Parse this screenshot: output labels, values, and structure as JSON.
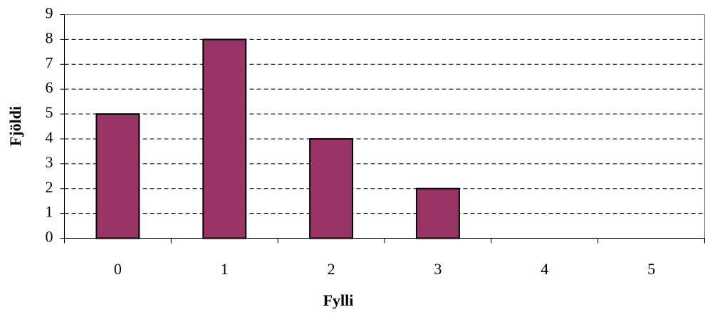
{
  "chart_data": {
    "type": "bar",
    "x_label": "Fylli",
    "y_label": "Fjöldi",
    "categories": [
      "0",
      "1",
      "2",
      "3",
      "4",
      "5"
    ],
    "values": [
      5,
      8,
      4,
      2,
      0,
      0
    ],
    "color": "#993366",
    "ylim": [
      0,
      9
    ],
    "yticks": [
      0,
      1,
      2,
      3,
      4,
      5,
      6,
      7,
      8,
      9
    ],
    "grid": true
  }
}
